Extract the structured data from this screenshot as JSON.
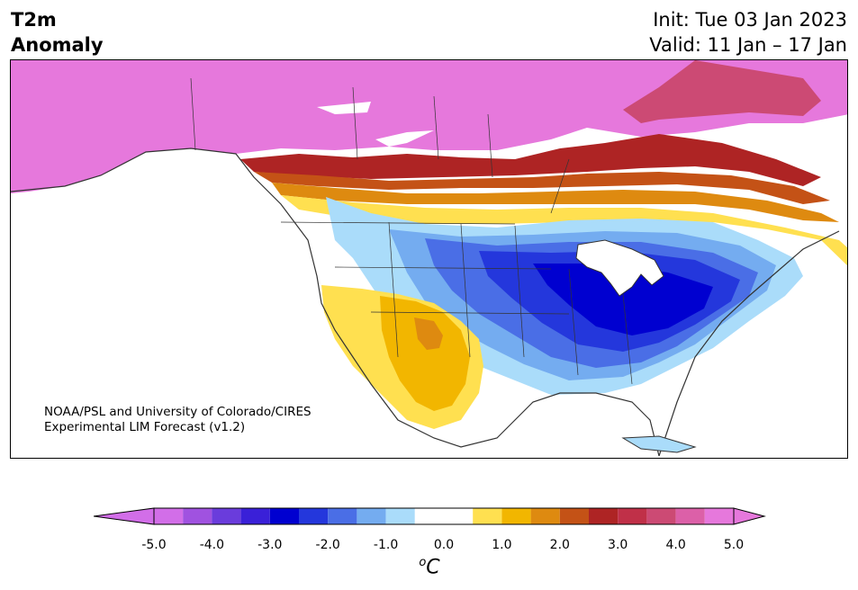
{
  "title": {
    "line1": "T2m",
    "line2": "Anomaly"
  },
  "dates": {
    "init": "Init: Tue 03 Jan 2023",
    "valid": "Valid: 11 Jan – 17 Jan"
  },
  "credit": {
    "line1": "NOAA/PSL and University of Colorado/CIRES",
    "line2": "Experimental LIM Forecast (v1.2)"
  },
  "colorbar": {
    "unit_base": "o",
    "unit_letter": "C",
    "tick_labels": [
      "-5.0",
      "-4.0",
      "-3.0",
      "-2.0",
      "-1.0",
      "0.0",
      "1.0",
      "2.0",
      "3.0",
      "4.0",
      "5.0"
    ],
    "tick_values": [
      -5,
      -4,
      -3,
      -2,
      -1,
      0,
      1,
      2,
      3,
      4,
      5
    ],
    "range": [
      -5,
      5
    ],
    "bins": [
      {
        "lo": -5.0,
        "hi": -4.5,
        "color": "#d26ee8"
      },
      {
        "lo": -4.5,
        "hi": -4.0,
        "color": "#a052e0"
      },
      {
        "lo": -4.0,
        "hi": -3.5,
        "color": "#6a3cdc"
      },
      {
        "lo": -3.5,
        "hi": -3.0,
        "color": "#3a20d8"
      },
      {
        "lo": -3.0,
        "hi": -2.5,
        "color": "#0000d0"
      },
      {
        "lo": -2.5,
        "hi": -2.0,
        "color": "#2437dc"
      },
      {
        "lo": -2.0,
        "hi": -1.5,
        "color": "#4a6ee6"
      },
      {
        "lo": -1.5,
        "hi": -1.0,
        "color": "#74acf0"
      },
      {
        "lo": -1.0,
        "hi": -0.5,
        "color": "#aadcfa"
      },
      {
        "lo": -0.5,
        "hi": 0.5,
        "color": "#ffffff"
      },
      {
        "lo": 0.5,
        "hi": 1.0,
        "color": "#ffe050"
      },
      {
        "lo": 1.0,
        "hi": 1.5,
        "color": "#f2b600"
      },
      {
        "lo": 1.5,
        "hi": 2.0,
        "color": "#de8a10"
      },
      {
        "lo": 2.0,
        "hi": 2.5,
        "color": "#c45216"
      },
      {
        "lo": 2.5,
        "hi": 3.0,
        "color": "#ae2424"
      },
      {
        "lo": 3.0,
        "hi": 3.5,
        "color": "#c03048"
      },
      {
        "lo": 3.5,
        "hi": 4.0,
        "color": "#cc4a74"
      },
      {
        "lo": 4.0,
        "hi": 4.5,
        "color": "#dc60a8"
      },
      {
        "lo": 4.5,
        "hi": 5.0,
        "color": "#e678dc"
      }
    ],
    "under_color": "#d26ee8",
    "over_color": "#e678dc"
  },
  "map": {
    "land_color": "#ffffff",
    "coast_color": "#333333"
  }
}
